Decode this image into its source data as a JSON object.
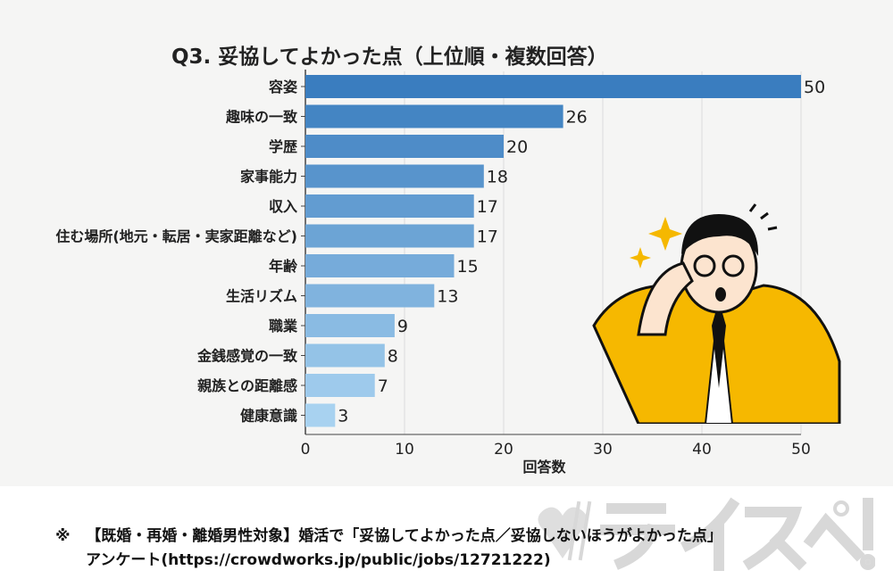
{
  "chart_data": {
    "type": "bar",
    "orientation": "horizontal",
    "title": "Q3. 妥協してよかった点（上位順・複数回答）",
    "xlabel": "回答数",
    "ylabel": "",
    "categories": [
      "容姿",
      "趣味の一致",
      "学歴",
      "家事能力",
      "収入",
      "住む場所(地元・転居・実家距離など)",
      "年齢",
      "生活リズム",
      "職業",
      "金銭感覚の一致",
      "親族との距離感",
      "健康意識"
    ],
    "values": [
      50,
      26,
      20,
      18,
      17,
      17,
      15,
      13,
      9,
      8,
      7,
      3
    ],
    "xlim": [
      0,
      50
    ],
    "xticks": [
      0,
      10,
      20,
      30,
      40,
      50
    ],
    "grid": true,
    "bar_color_dark": "#3a7dbf",
    "bar_color_light": "#a8d2f0"
  },
  "footer": {
    "note_mark": "※",
    "line1": "【既婚・再婚・離婚男性対象】婚活で「妥協してよかった点／妥協しないほうがよかった点」",
    "line2": "アンケート(https://crowdworks.jp/public/jobs/12721222)"
  },
  "watermark": "テイスペ!",
  "illustration": "surprised-man-adjusting-glasses-icon"
}
